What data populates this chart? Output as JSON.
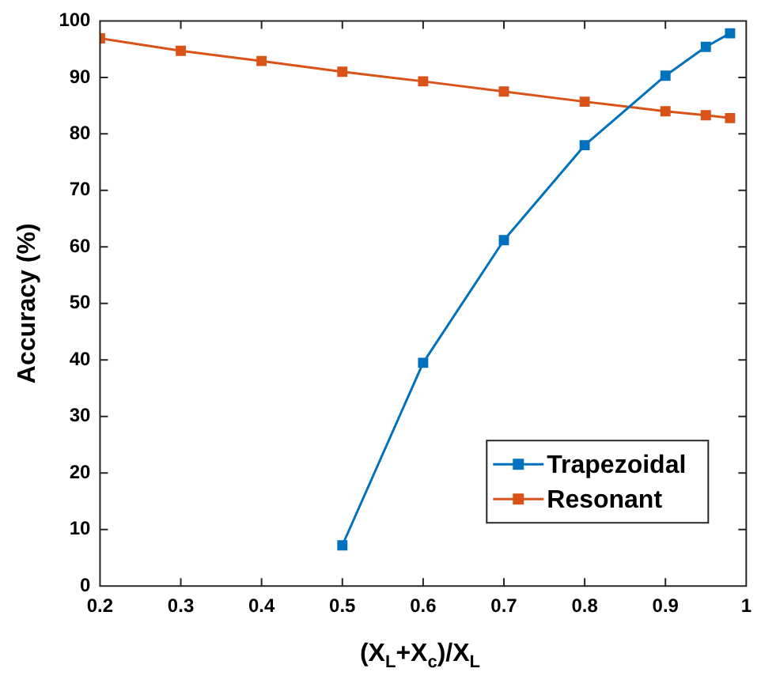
{
  "chart_data": {
    "type": "line",
    "xlabel": "(X$_{L}$+X$_{c}$)/X$_{L}$",
    "ylabel": "Accuracy (%)",
    "xlim": [
      0.2,
      1
    ],
    "xticks": [
      0.2,
      0.3,
      0.4,
      0.5,
      0.6,
      0.7,
      0.8,
      0.9,
      1
    ],
    "ylim": [
      0,
      100
    ],
    "yticks": [
      0,
      10,
      20,
      30,
      40,
      50,
      60,
      70,
      80,
      90,
      100
    ],
    "grid": false,
    "legend": "bottom right",
    "marker": "square",
    "line_style": "solid",
    "series": [
      {
        "name": "Trapezoidal",
        "color": "#0072bd",
        "x": [
          0.5,
          0.6,
          0.7,
          0.8,
          0.9,
          0.95,
          0.98
        ],
        "values": [
          7.2,
          39.5,
          61.2,
          78,
          90.3,
          95.4,
          97.8
        ]
      },
      {
        "name": "Resonant",
        "color": "#d95319",
        "x": [
          0.2,
          0.3,
          0.4,
          0.5,
          0.6,
          0.7,
          0.8,
          0.9,
          0.95,
          0.98
        ],
        "values": [
          96.9,
          94.7,
          92.9,
          91.0,
          89.3,
          87.5,
          85.7,
          84.0,
          83.3,
          82.8
        ]
      }
    ]
  }
}
